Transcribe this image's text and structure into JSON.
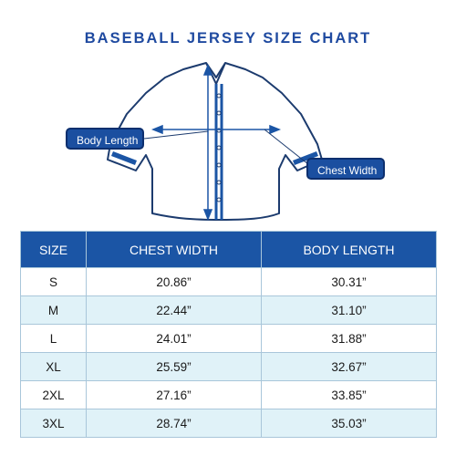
{
  "title": "BASEBALL JERSEY SIZE CHART",
  "callouts": {
    "body_length": "Body Length",
    "chest_width": "Chest Width"
  },
  "colors": {
    "accent": "#1b55a5",
    "title": "#1f4aa0",
    "row_alt": "#e0f2f8",
    "jersey_outline": "#1c3b6e"
  },
  "table": {
    "headers": [
      "SIZE",
      "CHEST WIDTH",
      "BODY LENGTH"
    ],
    "rows": [
      [
        "S",
        "20.86”",
        "30.31”"
      ],
      [
        "M",
        "22.44”",
        "31.10”"
      ],
      [
        "L",
        "24.01”",
        "31.88”"
      ],
      [
        "XL",
        "25.59”",
        "32.67”"
      ],
      [
        "2XL",
        "27.16”",
        "33.85”"
      ],
      [
        "3XL",
        "28.74”",
        "35.03”"
      ]
    ]
  }
}
